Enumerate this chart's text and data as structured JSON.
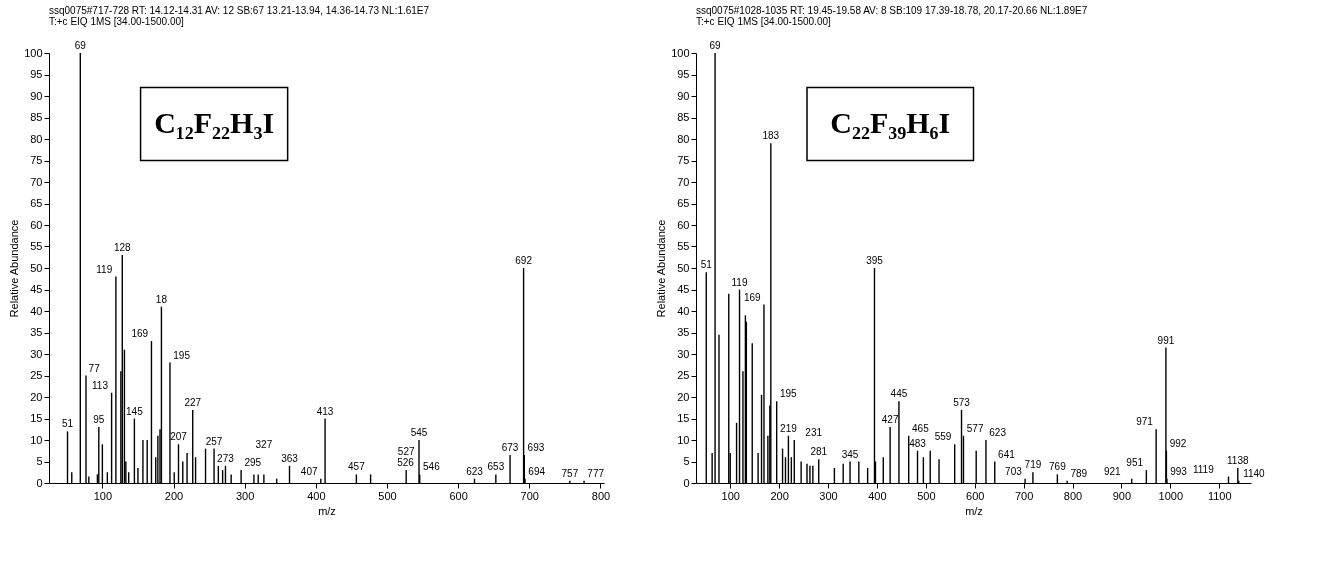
{
  "chart_data": [
    {
      "type": "bar",
      "title": "ssq0075#717-728  RT: 14.12-14.31 AV: 12 SB:67 13.21-13.94, 14.36-14.73 NL:1.61E7",
      "subtitle": "T:+c EIQ 1MS [34.00-1500.00]",
      "xlabel": "m/z",
      "ylabel": "Relative Abundance",
      "x": [
        51,
        57,
        69,
        77,
        81,
        93,
        95,
        100,
        107,
        113,
        119,
        126,
        128,
        131,
        133,
        137,
        145,
        150,
        157,
        163,
        169,
        175,
        178,
        181,
        183,
        195,
        201,
        207,
        213,
        219,
        227,
        231,
        245,
        257,
        263,
        269,
        273,
        281,
        295,
        313,
        319,
        327,
        345,
        363,
        407,
        413,
        457,
        477,
        527,
        545,
        546,
        623,
        653,
        673,
        692,
        693,
        694,
        757,
        777
      ],
      "series": [
        {
          "color": "#000000",
          "values": [
            12,
            2.5,
            100,
            25,
            1.5,
            2,
            13,
            9,
            2.5,
            21,
            48,
            26,
            53,
            31,
            5,
            2.5,
            15,
            3.5,
            10,
            10,
            33,
            6,
            11,
            12.5,
            41,
            28,
            2.5,
            9,
            5,
            7,
            17,
            6,
            8,
            8,
            4,
            3,
            4,
            2,
            3,
            2,
            2,
            2,
            1,
            4,
            1,
            15,
            2,
            2,
            3,
            10,
            2,
            1,
            2,
            6.5,
            50,
            6.5,
            1,
            0.5,
            0.5
          ]
        }
      ],
      "xlim": [
        25,
        805
      ],
      "xticks": [
        100,
        200,
        300,
        400,
        500,
        600,
        700,
        800
      ],
      "ylim": [
        0,
        100
      ],
      "yticks": [
        0,
        5,
        10,
        15,
        20,
        25,
        30,
        35,
        40,
        45,
        50,
        55,
        60,
        65,
        70,
        75,
        80,
        85,
        90,
        95,
        100
      ],
      "grid": false,
      "legend": false,
      "annotations": [
        "C₁₂F₂₂H₃I",
        {
          "text": "69",
          "x": 69,
          "y": 100
        },
        {
          "text": "128",
          "x": 128,
          "y": 53
        },
        {
          "text": "692",
          "x": 692,
          "y": 50
        },
        {
          "text": "119",
          "x": 119,
          "y": 48
        },
        {
          "text": "18",
          "x": 183,
          "y": 41
        },
        {
          "text": "169",
          "x": 169,
          "y": 33
        },
        {
          "text": "195",
          "x": 195,
          "y": 28
        },
        {
          "text": "77",
          "x": 77,
          "y": 25
        },
        {
          "text": "113",
          "x": 113,
          "y": 21
        },
        {
          "text": "227",
          "x": 227,
          "y": 17
        },
        {
          "text": "145",
          "x": 145,
          "y": 15
        },
        {
          "text": "413",
          "x": 413,
          "y": 15
        },
        {
          "text": "95",
          "x": 95,
          "y": 13
        },
        {
          "text": "51",
          "x": 51,
          "y": 12
        },
        {
          "text": "545",
          "x": 545,
          "y": 10
        },
        {
          "text": "207",
          "x": 207,
          "y": 9
        },
        {
          "text": "257",
          "x": 257,
          "y": 8
        },
        {
          "text": "673",
          "x": 673,
          "y": 6.5
        },
        {
          "text": "693",
          "x": 693,
          "y": 6.5
        },
        {
          "text": "273",
          "x": 273,
          "y": 4
        },
        {
          "text": "363",
          "x": 363,
          "y": 4
        },
        {
          "text": "295",
          "x": 295,
          "y": 3
        },
        {
          "text": "526",
          "x": 526,
          "y": 3
        },
        {
          "text": "527",
          "x": 527,
          "y": 3
        },
        {
          "text": "327",
          "x": 327,
          "y": 2
        },
        {
          "text": "457",
          "x": 457,
          "y": 2
        },
        {
          "text": "546",
          "x": 546,
          "y": 2
        },
        {
          "text": "653",
          "x": 653,
          "y": 2
        },
        {
          "text": "407",
          "x": 407,
          "y": 1
        },
        {
          "text": "623",
          "x": 623,
          "y": 1
        },
        {
          "text": "694",
          "x": 694,
          "y": 1
        },
        {
          "text": "757",
          "x": 757,
          "y": 0.5
        },
        {
          "text": "777",
          "x": 777,
          "y": 0.5
        }
      ]
    },
    {
      "type": "bar",
      "title": "ssq0075#1028-1035  RT: 19.45-19.58  AV: 8 SB:109  17.39-18.78, 20.17-20.66 NL:1.89E7",
      "subtitle": "T:+c EIQ 1MS [34.00-1500.00]",
      "xlabel": "m/z",
      "ylabel": "Relative Abundance",
      "x": [
        51,
        63,
        69,
        77,
        97,
        100,
        113,
        119,
        126,
        131,
        133,
        145,
        157,
        164,
        169,
        177,
        181,
        183,
        195,
        207,
        213,
        219,
        225,
        231,
        245,
        257,
        263,
        269,
        281,
        313,
        331,
        345,
        363,
        381,
        395,
        397,
        413,
        427,
        445,
        465,
        483,
        495,
        509,
        527,
        559,
        573,
        577,
        603,
        623,
        641,
        703,
        719,
        769,
        789,
        921,
        951,
        971,
        991,
        992,
        993,
        1119,
        1138,
        1140
      ],
      "series": [
        {
          "color": "#000000",
          "values": [
            49,
            7,
            100,
            34.5,
            44,
            7,
            14,
            45,
            26,
            39,
            37.5,
            32.5,
            7,
            20.5,
            41.5,
            11,
            18,
            79,
            19,
            8,
            6,
            11,
            6,
            10,
            5,
            4.5,
            4,
            4,
            5.5,
            3.5,
            4.5,
            5,
            5,
            3.5,
            50,
            5,
            6,
            13,
            19,
            11,
            7.5,
            6,
            7.5,
            5.5,
            9,
            17,
            11,
            7.5,
            10,
            5,
            1,
            2.5,
            2,
            0.5,
            1,
            3,
            12.5,
            31.5,
            7.5,
            1,
            1.5,
            3.5,
            0.5
          ]
        }
      ],
      "xlim": [
        30,
        1165
      ],
      "xticks": [
        100,
        200,
        300,
        400,
        500,
        600,
        700,
        800,
        900,
        1000,
        1100
      ],
      "ylim": [
        0,
        100
      ],
      "yticks": [
        0,
        5,
        10,
        15,
        20,
        25,
        30,
        35,
        40,
        45,
        50,
        55,
        60,
        65,
        70,
        75,
        80,
        85,
        90,
        95,
        100
      ],
      "grid": false,
      "legend": false,
      "annotations": [
        "C₂₂F₃₉H₆I",
        {
          "text": "69",
          "x": 69,
          "y": 100
        },
        {
          "text": "183",
          "x": 183,
          "y": 79
        },
        {
          "text": "395",
          "x": 395,
          "y": 50
        },
        {
          "text": "51",
          "x": 51,
          "y": 49
        },
        {
          "text": "119",
          "x": 119,
          "y": 45
        },
        {
          "text": "169",
          "x": 169,
          "y": 41.5
        },
        {
          "text": "991",
          "x": 991,
          "y": 31.5
        },
        {
          "text": "195",
          "x": 195,
          "y": 19
        },
        {
          "text": "445",
          "x": 445,
          "y": 19
        },
        {
          "text": "573",
          "x": 573,
          "y": 17
        },
        {
          "text": "427",
          "x": 427,
          "y": 13
        },
        {
          "text": "971",
          "x": 971,
          "y": 12.5
        },
        {
          "text": "219",
          "x": 219,
          "y": 11
        },
        {
          "text": "465",
          "x": 465,
          "y": 11
        },
        {
          "text": "577",
          "x": 577,
          "y": 11
        },
        {
          "text": "231",
          "x": 231,
          "y": 10
        },
        {
          "text": "623",
          "x": 623,
          "y": 10
        },
        {
          "text": "559",
          "x": 559,
          "y": 9
        },
        {
          "text": "483",
          "x": 483,
          "y": 7.5
        },
        {
          "text": "992",
          "x": 992,
          "y": 7.5
        },
        {
          "text": "281",
          "x": 281,
          "y": 5.5
        },
        {
          "text": "345",
          "x": 345,
          "y": 5
        },
        {
          "text": "641",
          "x": 641,
          "y": 5
        },
        {
          "text": "1138",
          "x": 1138,
          "y": 3.5
        },
        {
          "text": "951",
          "x": 951,
          "y": 3
        },
        {
          "text": "719",
          "x": 719,
          "y": 2.5
        },
        {
          "text": "769",
          "x": 769,
          "y": 2
        },
        {
          "text": "1119",
          "x": 1119,
          "y": 1.5
        },
        {
          "text": "703",
          "x": 703,
          "y": 1
        },
        {
          "text": "993",
          "x": 993,
          "y": 1
        },
        {
          "text": "789",
          "x": 789,
          "y": 0.5
        },
        {
          "text": "921",
          "x": 921,
          "y": 1
        },
        {
          "text": "1140",
          "x": 1140,
          "y": 0.5
        }
      ]
    }
  ]
}
